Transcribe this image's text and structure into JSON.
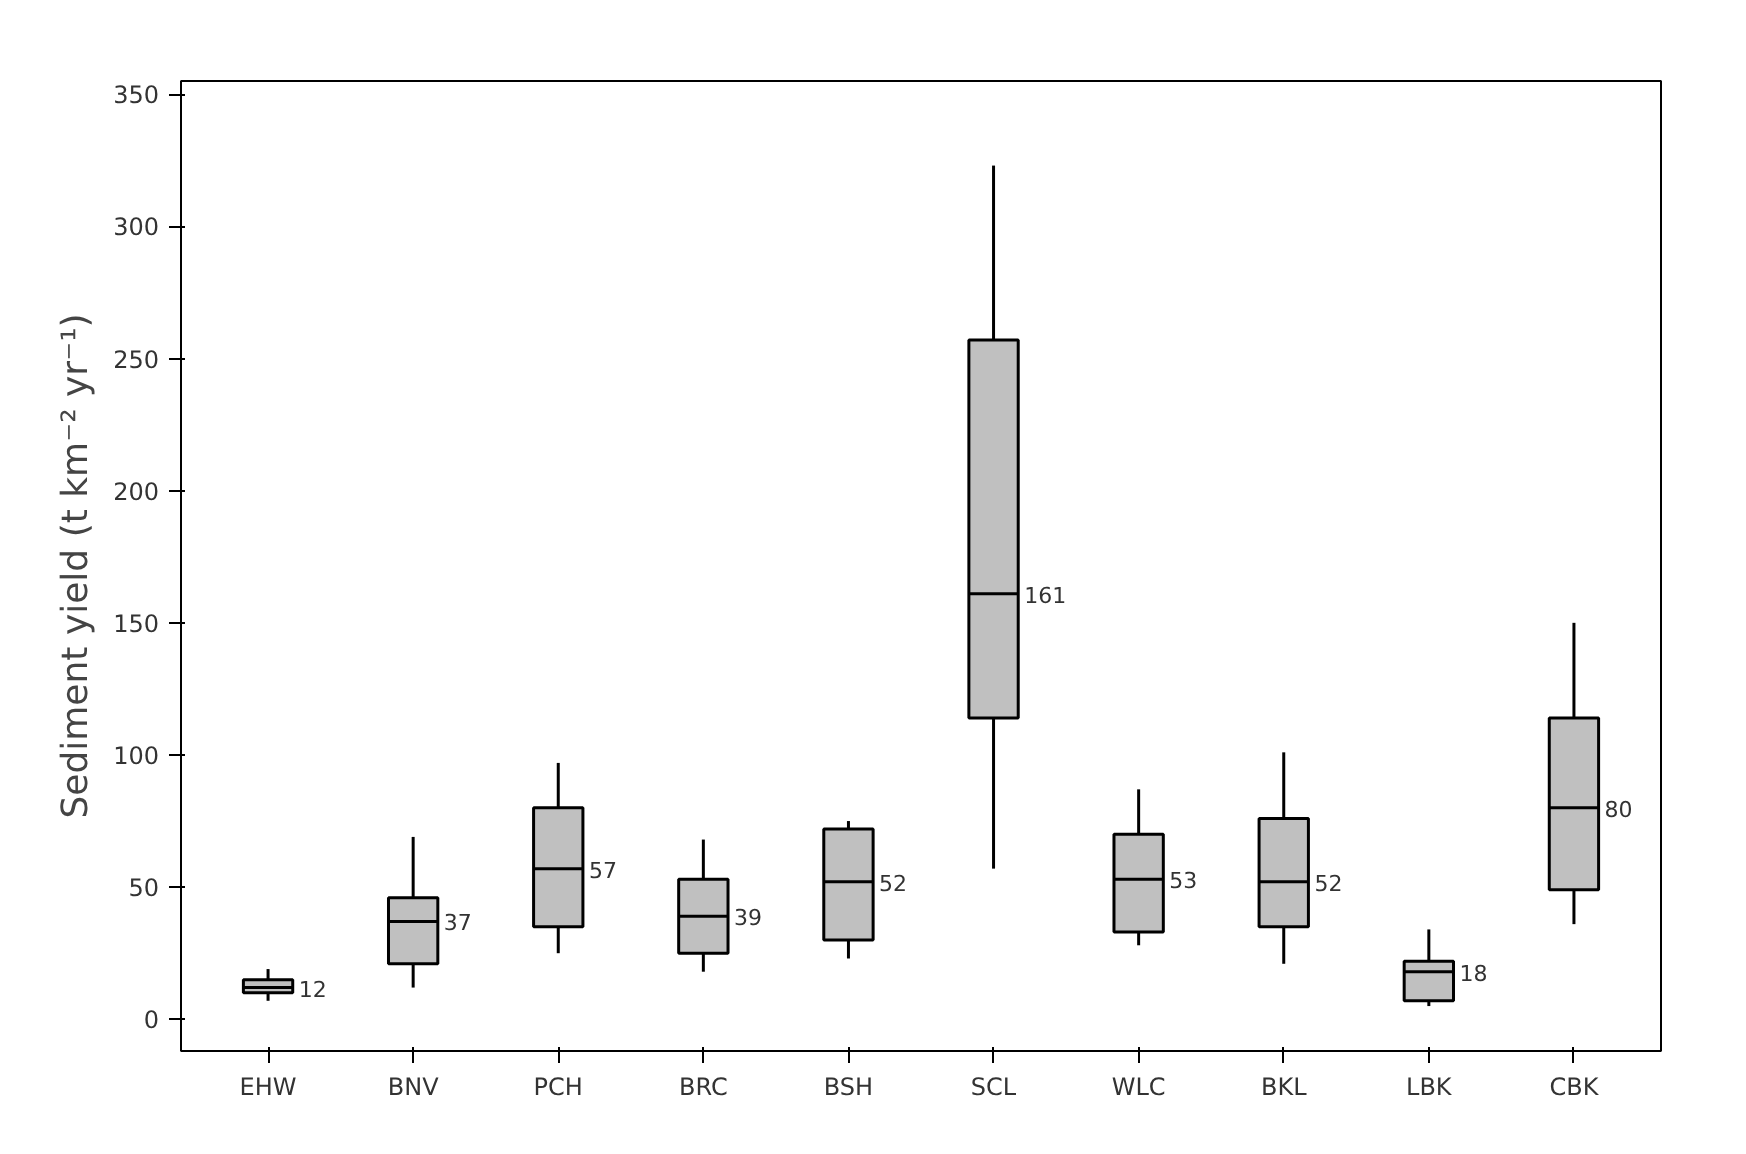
{
  "chart_data": {
    "type": "box",
    "ylabel": "Sediment yield (t km⁻² yr⁻¹)",
    "categories": [
      "EHW",
      "BNV",
      "PCH",
      "BRC",
      "BSH",
      "SCL",
      "WLC",
      "BKL",
      "LBK",
      "CBK"
    ],
    "boxes": [
      {
        "low": 7,
        "q1": 10,
        "median": 12,
        "q3": 15,
        "high": 19
      },
      {
        "low": 12,
        "q1": 21,
        "median": 37,
        "q3": 46,
        "high": 69
      },
      {
        "low": 25,
        "q1": 35,
        "median": 57,
        "q3": 80,
        "high": 97
      },
      {
        "low": 18,
        "q1": 25,
        "median": 39,
        "q3": 53,
        "high": 68
      },
      {
        "low": 23,
        "q1": 30,
        "median": 52,
        "q3": 72,
        "high": 75
      },
      {
        "low": 57,
        "q1": 114,
        "median": 161,
        "q3": 257,
        "high": 323
      },
      {
        "low": 28,
        "q1": 33,
        "median": 53,
        "q3": 70,
        "high": 87
      },
      {
        "low": 21,
        "q1": 35,
        "median": 52,
        "q3": 76,
        "high": 101
      },
      {
        "low": 5,
        "q1": 7,
        "median": 18,
        "q3": 22,
        "high": 34
      },
      {
        "low": 36,
        "q1": 49,
        "median": 80,
        "q3": 114,
        "high": 150
      }
    ],
    "color": "#c0c0c0",
    "value_labels": [
      "12",
      "37",
      "57",
      "39",
      "52",
      "161",
      "53",
      "52",
      "18",
      "80"
    ],
    "ylim": [
      -12,
      355
    ],
    "yticks": [
      0,
      50,
      100,
      150,
      200,
      250,
      300,
      350
    ],
    "grid": false
  }
}
